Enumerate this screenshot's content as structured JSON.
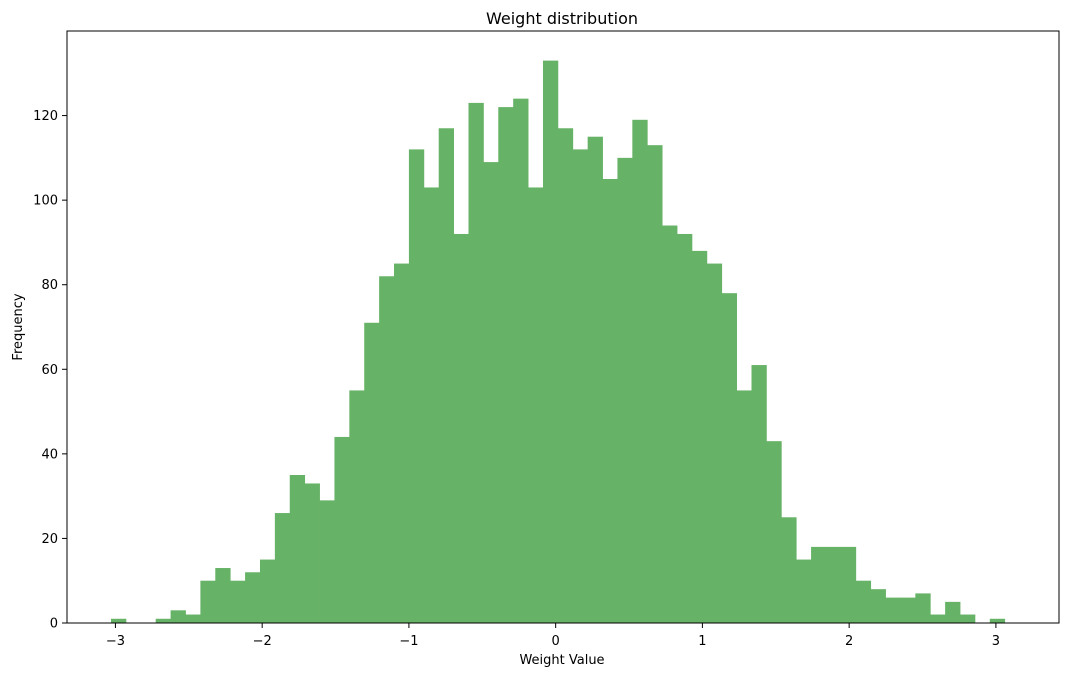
{
  "chart_data": {
    "type": "bar",
    "title": "Weight distribution",
    "xlabel": "Weight Value",
    "ylabel": "Frequency",
    "bar_color": "#66b266",
    "xlim": [
      -3.33,
      3.43
    ],
    "ylim": [
      0,
      140
    ],
    "x_ticks": [
      -3,
      -2,
      -1,
      0,
      1,
      2,
      3
    ],
    "x_tick_labels": [
      "−3",
      "−2",
      "−1",
      "0",
      "1",
      "2",
      "3"
    ],
    "y_ticks": [
      0,
      20,
      40,
      60,
      80,
      100,
      120
    ],
    "y_tick_labels": [
      "0",
      "20",
      "40",
      "60",
      "80",
      "100",
      "120"
    ],
    "bin_start": -3.03,
    "bin_width": 0.1015,
    "values": [
      1,
      0,
      0,
      1,
      3,
      2,
      10,
      13,
      10,
      12,
      15,
      26,
      35,
      33,
      29,
      44,
      55,
      71,
      82,
      85,
      112,
      103,
      117,
      92,
      123,
      109,
      122,
      124,
      103,
      133,
      117,
      112,
      115,
      105,
      110,
      119,
      113,
      94,
      92,
      88,
      85,
      78,
      55,
      61,
      43,
      25,
      15,
      18,
      18,
      18,
      10,
      8,
      6,
      6,
      7,
      2,
      5,
      2,
      0,
      1
    ]
  }
}
